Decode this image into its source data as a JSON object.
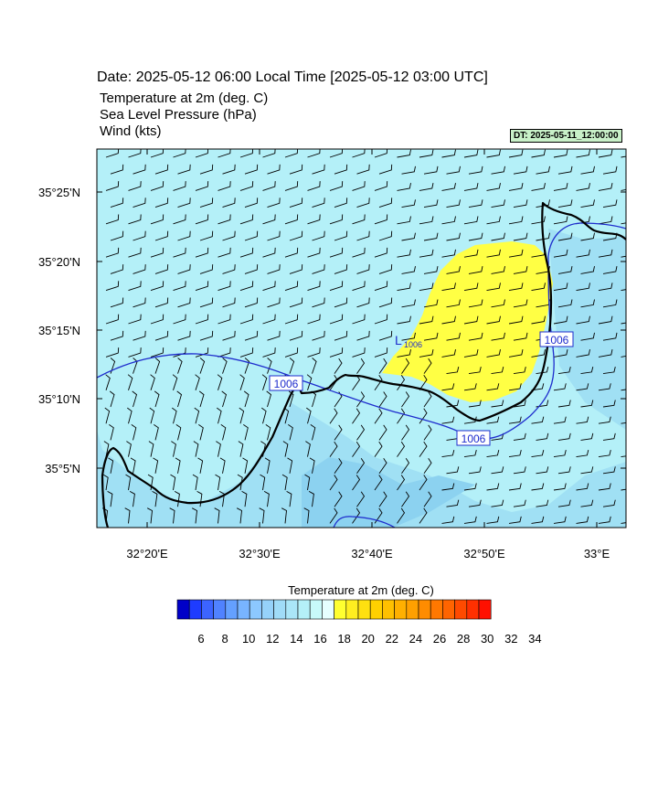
{
  "header": {
    "date_line": "Date: 2025-05-12  06:00 Local Time [2025-05-12  03:00 UTC]",
    "fields": [
      "Temperature at 2m   (deg. C)",
      "Sea Level Pressure   (hPa)",
      "Wind   (kts)"
    ],
    "data_time": "DT: 2025-05-11_12:00:00"
  },
  "map": {
    "lat_labels": [
      "35°25'N",
      "35°20'N",
      "35°15'N",
      "35°10'N",
      "35°5'N"
    ],
    "lon_labels": [
      "32°20'E",
      "32°30'E",
      "32°40'E",
      "32°50'E",
      "33°E"
    ],
    "isobar_labels": [
      "1006",
      "1006",
      "1006"
    ],
    "low_marker": "L",
    "low_value": "1006",
    "colors": {
      "sea_temp": "#b4f0f8",
      "cool_temp": "#a0e0f4",
      "colder_temp": "#8cd2f0",
      "warm_temp": "#ffff44",
      "isobar": "#1e2ccd",
      "coast": "#000000"
    }
  },
  "colorbar": {
    "title": "Temperature at 2m  (deg. C)",
    "tick_labels": [
      "6",
      "8",
      "10",
      "12",
      "14",
      "16",
      "18",
      "20",
      "22",
      "24",
      "26",
      "28",
      "30",
      "32",
      "34"
    ],
    "colors": [
      "#0000c8",
      "#1e3cff",
      "#3c64ff",
      "#5082ff",
      "#64a0ff",
      "#78b4ff",
      "#8cc8ff",
      "#96d2fa",
      "#a0dcf8",
      "#aae6f8",
      "#b4f0f8",
      "#c8fafa",
      "#e6ffff",
      "#ffff30",
      "#ffee20",
      "#ffe010",
      "#ffd000",
      "#ffc000",
      "#ffb000",
      "#ffa000",
      "#ff8c00",
      "#ff7800",
      "#ff6400",
      "#ff4a00",
      "#ff3000",
      "#ff1000"
    ]
  }
}
